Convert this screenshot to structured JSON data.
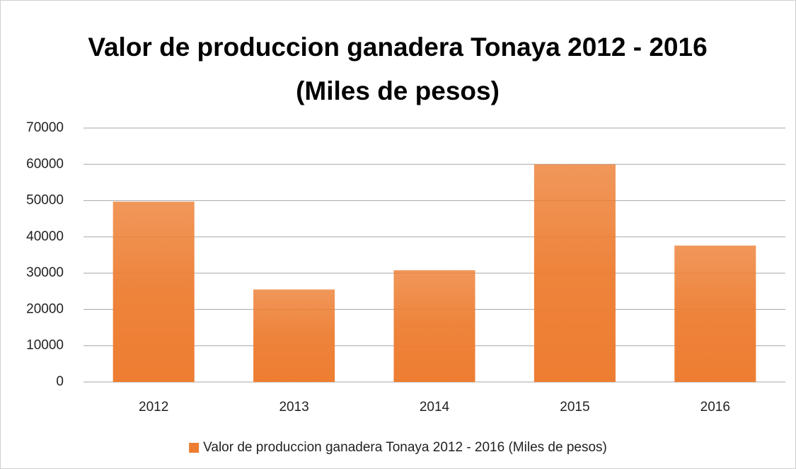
{
  "chart_data": {
    "type": "bar",
    "title": "Valor de produccion ganadera Tonaya 2012 - 2016 (Miles de pesos)",
    "categories": [
      "2012",
      "2013",
      "2014",
      "2015",
      "2016"
    ],
    "series": [
      {
        "name": "Valor de produccion ganadera Tonaya 2012 - 2016 (Miles de pesos)",
        "color": "#ed7d31",
        "values": [
          49700,
          25500,
          30800,
          60000,
          37600
        ]
      }
    ],
    "ylim": [
      0,
      70000
    ],
    "yticks": [
      0,
      10000,
      20000,
      30000,
      40000,
      50000,
      60000,
      70000
    ],
    "grid": true,
    "legend": "bottom"
  }
}
